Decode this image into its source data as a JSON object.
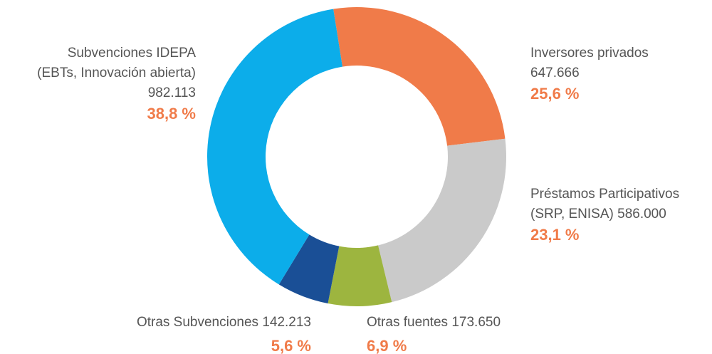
{
  "chart_data": {
    "type": "donut",
    "categories": [
      [
        "Inversores privados"
      ],
      [
        "Préstamos Participativos",
        "(SRP, ENISA)"
      ],
      [
        "Otras fuentes"
      ],
      [
        "Otras Subvenciones"
      ],
      [
        "Subvenciones IDEPA",
        "(EBTs, Innovación abierta)"
      ]
    ],
    "values": [
      647666,
      586000,
      173650,
      142213,
      982113
    ],
    "value_labels": [
      "647.666",
      "586.000",
      "173.650",
      "142.213",
      "982.113"
    ],
    "percents": [
      25.6,
      23.1,
      6.9,
      5.6,
      38.8
    ],
    "percent_labels": [
      "25,6 %",
      "23,1 %",
      "6,9 %",
      "5,6 %",
      "38,8  %"
    ],
    "colors": [
      "#f07b49",
      "#cacaca",
      "#9db53f",
      "#1a4f96",
      "#0cadea"
    ]
  }
}
